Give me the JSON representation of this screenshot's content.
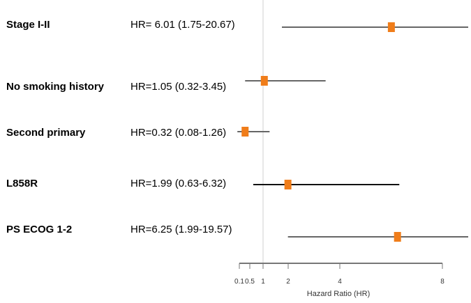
{
  "chart_data": {
    "type": "forest",
    "xlabel": "Hazard Ratio (HR)",
    "ticks": [
      "0.1",
      "0.5",
      "1",
      "2",
      "4",
      "8"
    ],
    "reference_line": 1,
    "marker_color": "#f07d1a",
    "line_color": "#666666",
    "rows": [
      {
        "label": "Stage I-II",
        "hr_text": "HR= 6.01 (1.75-20.67)",
        "hr": 6.01,
        "lo": 1.75,
        "hi": 20.67
      },
      {
        "label": "No smoking history",
        "hr_text": "HR=1.05 (0.32-3.45)",
        "hr": 1.05,
        "lo": 0.32,
        "hi": 3.45
      },
      {
        "label": "Second primary",
        "hr_text": "HR=0.32 (0.08-1.26)",
        "hr": 0.32,
        "lo": 0.08,
        "hi": 1.26
      },
      {
        "label": "L858R",
        "hr_text": "HR=1.99 (0.63-6.32)",
        "hr": 1.99,
        "lo": 0.63,
        "hi": 6.32
      },
      {
        "label": "PS ECOG 1-2",
        "hr_text": "HR=6.25 (1.99-19.57)",
        "hr": 6.25,
        "lo": 1.99,
        "hi": 19.57
      }
    ]
  }
}
